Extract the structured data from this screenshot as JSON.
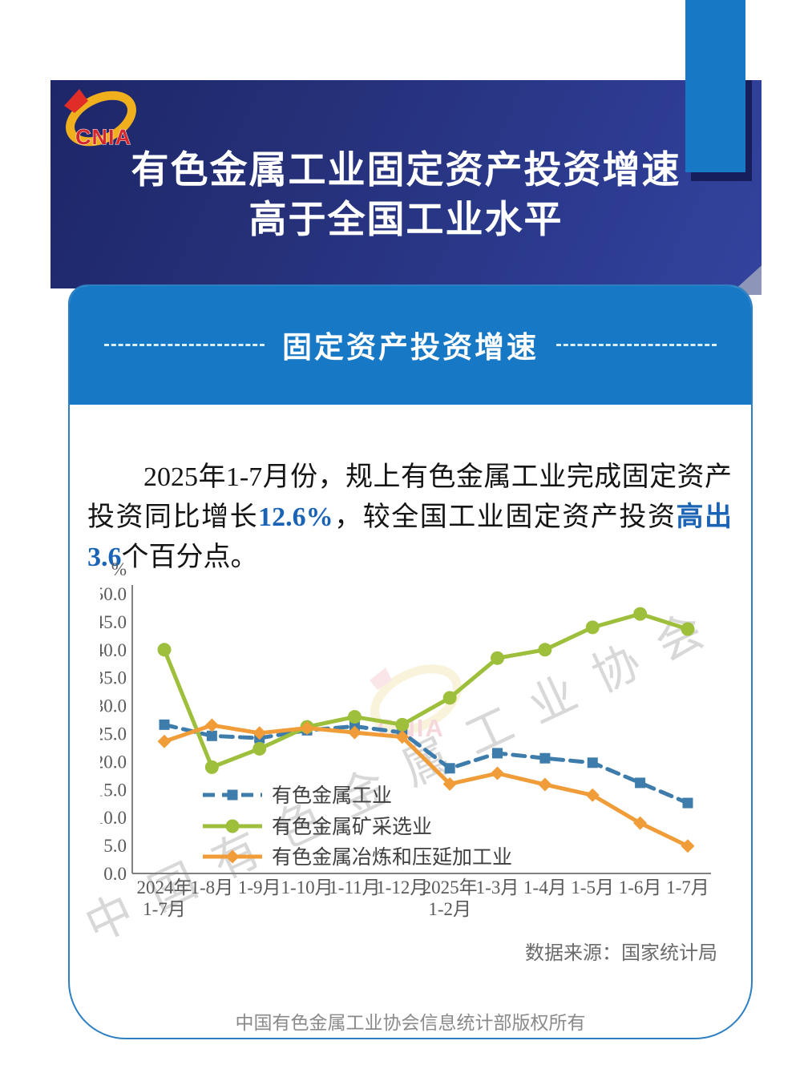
{
  "header": {
    "logo_text": "CNIA",
    "title_line1": "有色金属工业固定资产投资增速",
    "title_line2": "高于全国工业水平"
  },
  "section": {
    "title": "固定资产投资增速"
  },
  "paragraph": {
    "segments": [
      {
        "text": "2025年1-7月份，规上有色金属工业完成固定资产投资同比增长",
        "emphasis": false
      },
      {
        "text": "12.6%",
        "emphasis": true
      },
      {
        "text": "，较全国工业固定资产投资",
        "emphasis": false
      },
      {
        "text": "高出3.6",
        "emphasis": true
      },
      {
        "text": "个百分点。",
        "emphasis": false
      }
    ]
  },
  "chart_data": {
    "type": "line",
    "title": "",
    "y_axis_unit": "%",
    "ylim": [
      0,
      50
    ],
    "ytick_step": 5,
    "grid": false,
    "legend_position": "inside-bottom-left",
    "categories": [
      [
        "2024年",
        "1-7月"
      ],
      [
        "1-8月"
      ],
      [
        "1-9月"
      ],
      [
        "1-10月"
      ],
      [
        "1-11月"
      ],
      [
        "1-12月"
      ],
      [
        "2025年",
        "1-2月"
      ],
      [
        "1-3月"
      ],
      [
        "1-4月"
      ],
      [
        "1-5月"
      ],
      [
        "1-6月"
      ],
      [
        "1-7月"
      ]
    ],
    "series": [
      {
        "name": "有色金属工业",
        "color": "#3e7cab",
        "style": "dashed",
        "marker": "square",
        "values": [
          26.6,
          24.6,
          24.2,
          25.6,
          26.3,
          25.2,
          18.8,
          21.5,
          20.6,
          19.8,
          16.2,
          12.6
        ]
      },
      {
        "name": "有色金属矿采选业",
        "color": "#9dbf3b",
        "style": "solid",
        "marker": "circle",
        "values": [
          40.0,
          19.0,
          22.3,
          26.2,
          28.0,
          26.6,
          31.4,
          38.5,
          40.0,
          44.0,
          46.4,
          43.7
        ]
      },
      {
        "name": "有色金属冶炼和压延加工业",
        "color": "#f09c38",
        "style": "solid",
        "marker": "diamond",
        "values": [
          23.6,
          26.5,
          25.1,
          26.0,
          25.2,
          24.4,
          16.0,
          17.9,
          15.9,
          14.0,
          9.0,
          4.9
        ]
      }
    ]
  },
  "source_note": "数据来源：国家统计局",
  "footer": "中国有色金属工业协会信息统计部版权所有",
  "watermark": {
    "chars": "中国有色金属工业协会",
    "logo_text": "CNIA"
  },
  "colors": {
    "banner_navy": "#253078",
    "accent_blue": "#1778c5",
    "card_border": "#2d7fc1",
    "highlight_blue": "#1b64b5",
    "series_industry": "#3e7cab",
    "series_mining": "#9dbf3b",
    "series_smelting": "#f09c38",
    "axis_gray": "#808080"
  }
}
